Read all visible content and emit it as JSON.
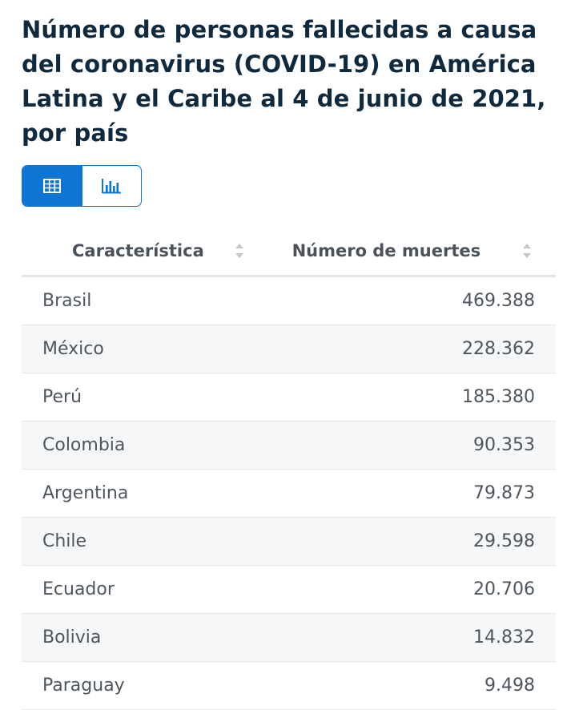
{
  "title": "Número de personas fallecidas a causa del coronavirus (COVID-19) en América Latina y el Caribe al 4 de junio de 2021, por país",
  "view_toggle": {
    "active": "table",
    "options": [
      {
        "name": "table-view",
        "icon": "table-icon"
      },
      {
        "name": "chart-view",
        "icon": "bar-chart-icon"
      }
    ]
  },
  "accent_color": "#0d75d4",
  "table": {
    "headers": [
      "Característica",
      "Número de muertes"
    ],
    "rows": [
      {
        "country": "Brasil",
        "deaths": "469.388"
      },
      {
        "country": "México",
        "deaths": "228.362"
      },
      {
        "country": "Perú",
        "deaths": "185.380"
      },
      {
        "country": "Colombia",
        "deaths": "90.353"
      },
      {
        "country": "Argentina",
        "deaths": "79.873"
      },
      {
        "country": "Chile",
        "deaths": "29.598"
      },
      {
        "country": "Ecuador",
        "deaths": "20.706"
      },
      {
        "country": "Bolivia",
        "deaths": "14.832"
      },
      {
        "country": "Paraguay",
        "deaths": "9.498"
      }
    ]
  }
}
